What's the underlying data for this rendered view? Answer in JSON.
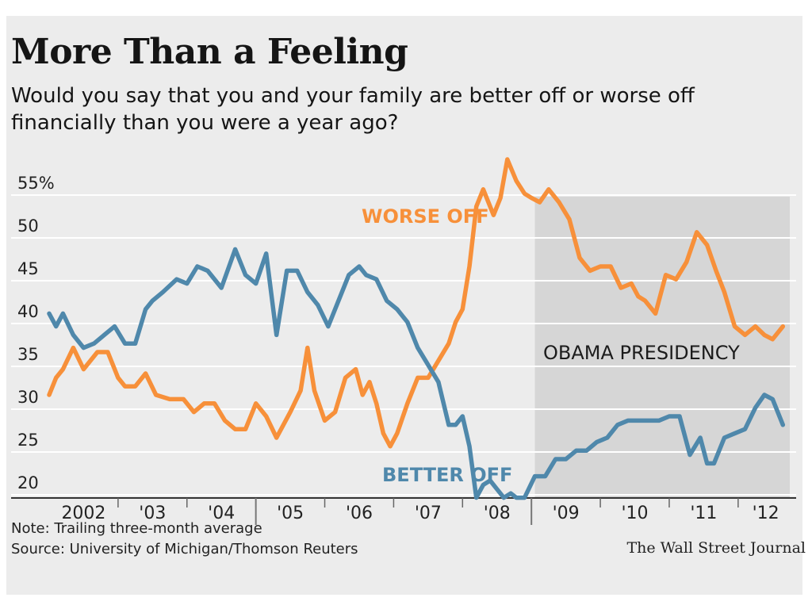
{
  "header": {
    "title": "More Than a Feeling",
    "subtitle": "Would you say that you and your family are better off or worse off financially than you were a year ago?"
  },
  "footer": {
    "note": "Note: Trailing three-month average",
    "source": "Source: University of Michigan/Thomson Reuters",
    "credit": "The Wall Street Journal"
  },
  "colors": {
    "worse": "#f7903a",
    "better": "#4f88ab",
    "shade": "#d6d6d6",
    "background": "#ececec"
  },
  "chart_data": {
    "type": "line",
    "title": "More Than a Feeling",
    "subtitle": "Would you say that you and your family are better off or worse off financially than you were a year ago?",
    "xlabel": "",
    "ylabel": "",
    "x_unit": "year",
    "xlim": [
      2002.0,
      2012.75
    ],
    "ylim": [
      18,
      56
    ],
    "y_ticks": [
      20,
      25,
      30,
      35,
      40,
      45,
      50,
      55
    ],
    "y_tick_labels": [
      "20",
      "25",
      "30",
      "35",
      "40",
      "45",
      "50",
      "55%"
    ],
    "x_tick_labels": [
      {
        "label": "2002",
        "x": 2002.5
      },
      {
        "label": "'03",
        "x": 2003.5
      },
      {
        "label": "'04",
        "x": 2004.5
      },
      {
        "label": "'05",
        "x": 2005.5
      },
      {
        "label": "'06",
        "x": 2006.5
      },
      {
        "label": "'07",
        "x": 2007.5
      },
      {
        "label": "'08",
        "x": 2008.5
      },
      {
        "label": "'09",
        "x": 2009.5
      },
      {
        "label": "'10",
        "x": 2010.5
      },
      {
        "label": "'11",
        "x": 2011.5
      },
      {
        "label": "'12",
        "x": 2012.4
      }
    ],
    "grid": true,
    "shaded_region": {
      "label": "OBAMA PRESIDENCY",
      "x_start": 2009.05,
      "x_end": 2012.75
    },
    "series": [
      {
        "name": "WORSE OFF",
        "label": "WORSE OFF",
        "color": "#f7903a",
        "x": [
          2002.0,
          2002.1,
          2002.2,
          2002.35,
          2002.5,
          2002.7,
          2002.85,
          2003.0,
          2003.1,
          2003.25,
          2003.4,
          2003.55,
          2003.75,
          2003.95,
          2004.1,
          2004.25,
          2004.4,
          2004.55,
          2004.7,
          2004.85,
          2005.0,
          2005.15,
          2005.3,
          2005.5,
          2005.65,
          2005.75,
          2005.85,
          2006.0,
          2006.15,
          2006.3,
          2006.45,
          2006.55,
          2006.65,
          2006.75,
          2006.85,
          2006.95,
          2007.05,
          2007.2,
          2007.35,
          2007.5,
          2007.65,
          2007.8,
          2007.9,
          2008.0,
          2008.1,
          2008.2,
          2008.3,
          2008.45,
          2008.55,
          2008.65,
          2008.78,
          2008.9,
          2009.0,
          2009.12,
          2009.25,
          2009.4,
          2009.55,
          2009.7,
          2009.85,
          2010.0,
          2010.15,
          2010.3,
          2010.45,
          2010.55,
          2010.65,
          2010.8,
          2010.95,
          2011.1,
          2011.25,
          2011.4,
          2011.55,
          2011.68,
          2011.8,
          2011.95,
          2012.1,
          2012.25,
          2012.38,
          2012.5,
          2012.65
        ],
        "y": [
          30,
          32,
          33,
          35.5,
          33,
          35,
          35,
          32,
          31,
          31,
          32.5,
          30,
          29.5,
          29.5,
          28,
          29,
          29,
          27,
          26,
          26,
          29,
          27.5,
          25,
          28,
          30.5,
          35.5,
          30.5,
          27,
          28,
          32,
          33,
          30,
          31.5,
          29,
          25.5,
          24,
          25.5,
          29,
          32,
          32,
          34,
          36,
          38.5,
          40,
          45,
          52,
          54,
          51,
          53,
          57.5,
          55,
          53.5,
          53,
          52.5,
          54,
          52.5,
          50.5,
          46,
          44.5,
          45,
          45,
          42.5,
          43,
          41.5,
          41,
          39.5,
          44,
          43.5,
          45.5,
          49,
          47.5,
          44.5,
          42,
          38,
          37,
          38,
          37,
          36.5,
          38
        ]
      },
      {
        "name": "BETTER OFF",
        "label": "BETTER OFF",
        "color": "#4f88ab",
        "x": [
          2002.0,
          2002.1,
          2002.2,
          2002.35,
          2002.5,
          2002.65,
          2002.8,
          2002.95,
          2003.1,
          2003.25,
          2003.4,
          2003.5,
          2003.65,
          2003.85,
          2004.0,
          2004.15,
          2004.3,
          2004.5,
          2004.7,
          2004.85,
          2005.0,
          2005.15,
          2005.3,
          2005.45,
          2005.6,
          2005.75,
          2005.9,
          2006.05,
          2006.2,
          2006.35,
          2006.5,
          2006.6,
          2006.75,
          2006.9,
          2007.05,
          2007.2,
          2007.35,
          2007.5,
          2007.65,
          2007.8,
          2007.9,
          2008.0,
          2008.1,
          2008.2,
          2008.3,
          2008.4,
          2008.5,
          2008.6,
          2008.7,
          2008.78,
          2008.9,
          2009.05,
          2009.2,
          2009.35,
          2009.5,
          2009.65,
          2009.8,
          2009.95,
          2010.1,
          2010.25,
          2010.4,
          2010.55,
          2010.7,
          2010.85,
          2011.0,
          2011.15,
          2011.3,
          2011.45,
          2011.55,
          2011.65,
          2011.8,
          2011.95,
          2012.1,
          2012.25,
          2012.38,
          2012.5,
          2012.65
        ],
        "y": [
          39.5,
          38,
          39.5,
          37,
          35.5,
          36,
          37,
          38,
          36,
          36,
          40,
          41,
          42,
          43.5,
          43,
          45,
          44.5,
          42.5,
          47,
          44,
          43,
          46.5,
          37,
          44.5,
          44.5,
          42,
          40.5,
          38,
          41,
          44,
          45,
          44,
          43.5,
          41,
          40,
          38.5,
          35.5,
          33.5,
          31.5,
          26.5,
          26.5,
          27.5,
          24,
          18,
          19.5,
          20,
          19,
          18,
          18.5,
          18,
          18,
          20.5,
          20.5,
          22.5,
          22.5,
          23.5,
          23.5,
          24.5,
          25,
          26.5,
          27,
          27,
          27,
          27,
          27.5,
          27.5,
          23,
          25,
          22,
          22,
          25,
          25.5,
          26,
          28.5,
          30,
          29.5,
          26.5
        ]
      }
    ]
  }
}
